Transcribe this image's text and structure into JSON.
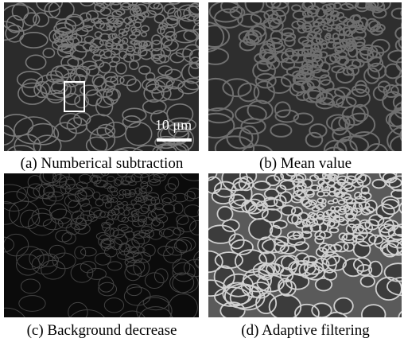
{
  "panels": [
    {
      "caption": "(a) Numberical subtraction",
      "scale_bar": "10 μm"
    },
    {
      "caption": "(b) Mean value"
    },
    {
      "caption": "(c) Background decrease"
    },
    {
      "caption": "(d) Adaptive filtering"
    }
  ]
}
